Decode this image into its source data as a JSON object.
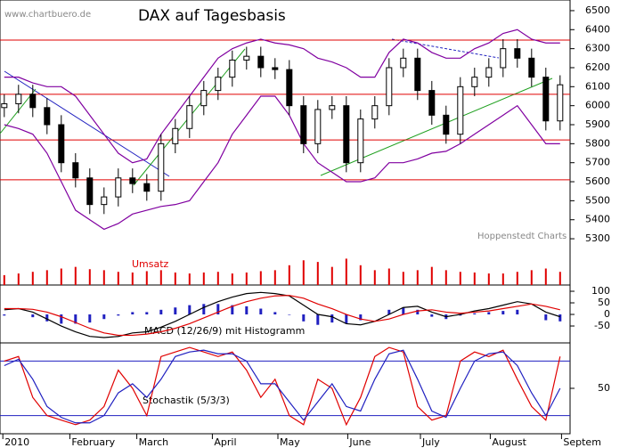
{
  "chart_data": [
    {
      "type": "candlestick",
      "title": "DAX auf Tagesbasis",
      "source": "www.chartbuero.de",
      "credit": "Hoppenstedt Charts",
      "open": [
        5990,
        6010,
        6060,
        5990,
        5900,
        5700,
        5620,
        5480,
        5520,
        5620,
        5590,
        5550,
        5800,
        5880,
        6000,
        6080,
        6150,
        6240,
        6260,
        6200,
        6190,
        6000,
        5800,
        5980,
        6000,
        5700,
        5930,
        6000,
        6200,
        6250,
        6080,
        5950,
        5850,
        6100,
        6150,
        6200,
        6300,
        6250,
        6150,
        5920
      ],
      "high": [
        6060,
        6110,
        6110,
        6040,
        5950,
        5750,
        5670,
        5570,
        5670,
        5670,
        5640,
        5850,
        5930,
        6050,
        6130,
        6200,
        6290,
        6310,
        6310,
        6250,
        6240,
        6050,
        6030,
        6050,
        6050,
        5980,
        6050,
        6250,
        6300,
        6300,
        6130,
        6000,
        6150,
        6200,
        6250,
        6350,
        6350,
        6300,
        6200,
        6160
      ],
      "low": [
        5940,
        5960,
        5940,
        5850,
        5650,
        5570,
        5430,
        5430,
        5470,
        5540,
        5500,
        5500,
        5750,
        5830,
        5950,
        6030,
        6100,
        6190,
        6150,
        6140,
        5950,
        5750,
        5750,
        5930,
        5650,
        5650,
        5880,
        5950,
        6150,
        6030,
        5900,
        5800,
        5800,
        6050,
        6100,
        6150,
        6200,
        6100,
        5870,
        5870
      ],
      "close": [
        6010,
        6060,
        5990,
        5900,
        5700,
        5620,
        5480,
        5520,
        5620,
        5590,
        5550,
        5800,
        5880,
        6000,
        6080,
        6150,
        6240,
        6260,
        6200,
        6190,
        6000,
        5800,
        5980,
        6000,
        5700,
        5930,
        6000,
        6200,
        6250,
        6080,
        5950,
        5850,
        6100,
        6150,
        6200,
        6300,
        6250,
        6150,
        5920,
        6110
      ],
      "bands": [
        {
          "color": "#8000a0",
          "values": [
            6150,
            6150,
            6120,
            6100,
            6100,
            6050,
            5950,
            5850,
            5750,
            5700,
            5720,
            5850,
            5950,
            6050,
            6150,
            6250,
            6300,
            6330,
            6350,
            6330,
            6320,
            6300,
            6250,
            6230,
            6200,
            6150,
            6150,
            6280,
            6350,
            6330,
            6280,
            6250,
            6250,
            6300,
            6330,
            6380,
            6400,
            6350,
            6330,
            6330
          ]
        },
        {
          "color": "#8000a0",
          "values": [
            5900,
            5880,
            5850,
            5750,
            5600,
            5450,
            5400,
            5350,
            5380,
            5430,
            5450,
            5470,
            5480,
            5500,
            5600,
            5700,
            5850,
            5950,
            6050,
            6050,
            5950,
            5800,
            5700,
            5650,
            5600,
            5600,
            5620,
            5700,
            5700,
            5720,
            5750,
            5760,
            5800,
            5850,
            5900,
            5950,
            6000,
            5900,
            5800,
            5800
          ]
        }
      ],
      "levels": [
        6345,
        6060,
        5820,
        5610
      ],
      "level_color": "#e00000",
      "ylim": [
        5230,
        6556
      ],
      "yticks": [
        5300,
        5400,
        5500,
        5600,
        5700,
        5800,
        5900,
        6000,
        6100,
        6200,
        6300,
        6400,
        6500
      ]
    },
    {
      "type": "bar",
      "title": "Umsatz",
      "color": "#e00000",
      "values": [
        30,
        35,
        40,
        45,
        50,
        55,
        48,
        45,
        40,
        38,
        42,
        45,
        38,
        35,
        38,
        40,
        35,
        38,
        42,
        45,
        60,
        75,
        70,
        55,
        80,
        60,
        45,
        50,
        40,
        45,
        55,
        45,
        40,
        38,
        35,
        35,
        40,
        45,
        50,
        40
      ],
      "ylim": [
        0,
        100
      ]
    },
    {
      "type": "line",
      "title": "MACD (12/26/9) mit Histogramm",
      "ylim": [
        -123,
        127
      ],
      "yticks": [
        -50,
        0,
        50,
        100
      ],
      "histogram": {
        "color": "#2020c0",
        "values": [
          -5,
          0,
          -12,
          -30,
          -40,
          -40,
          -35,
          -20,
          -5,
          10,
          10,
          20,
          30,
          40,
          45,
          45,
          40,
          35,
          25,
          10,
          -2,
          -30,
          -45,
          -35,
          -40,
          -25,
          0,
          20,
          30,
          20,
          -10,
          -20,
          -5,
          5,
          10,
          15,
          20,
          0,
          -25,
          -30
        ]
      },
      "series": [
        {
          "color": "#000000",
          "values": [
            20,
            25,
            10,
            -20,
            -50,
            -75,
            -95,
            -100,
            -95,
            -80,
            -75,
            -55,
            -30,
            0,
            30,
            55,
            75,
            90,
            95,
            90,
            80,
            40,
            0,
            -10,
            -40,
            -45,
            -30,
            0,
            30,
            35,
            10,
            -10,
            0,
            15,
            25,
            40,
            55,
            45,
            10,
            -10
          ]
        },
        {
          "color": "#e00000",
          "values": [
            25,
            25,
            22,
            10,
            -10,
            -35,
            -60,
            -80,
            -90,
            -90,
            -85,
            -75,
            -60,
            -40,
            -15,
            10,
            35,
            55,
            70,
            80,
            82,
            70,
            45,
            25,
            0,
            -20,
            -30,
            -20,
            0,
            15,
            20,
            10,
            5,
            10,
            15,
            25,
            35,
            45,
            35,
            20
          ]
        }
      ]
    },
    {
      "type": "line",
      "title": "Stochastik (5/3/3)",
      "ylim": [
        0,
        100
      ],
      "yticks": [
        50
      ],
      "levels": [
        80,
        20
      ],
      "level_color": "#2020c0",
      "series": [
        {
          "color": "#e00000",
          "values": [
            80,
            85,
            40,
            20,
            15,
            10,
            15,
            30,
            70,
            50,
            20,
            85,
            90,
            95,
            90,
            85,
            90,
            70,
            40,
            60,
            20,
            10,
            60,
            50,
            10,
            40,
            85,
            95,
            90,
            30,
            15,
            20,
            80,
            90,
            85,
            92,
            60,
            30,
            15,
            85
          ]
        },
        {
          "color": "#2020c0",
          "values": [
            75,
            82,
            60,
            30,
            18,
            12,
            12,
            20,
            45,
            55,
            40,
            60,
            85,
            90,
            92,
            88,
            88,
            80,
            55,
            55,
            35,
            15,
            35,
            55,
            30,
            25,
            60,
            88,
            92,
            60,
            25,
            18,
            50,
            80,
            88,
            90,
            75,
            45,
            20,
            50
          ]
        }
      ],
      "xlim": [
        -0.3,
        39.7
      ],
      "xticks": [
        {
          "value": -0.1,
          "label": "2010"
        },
        {
          "value": 4.6,
          "label": "February"
        },
        {
          "value": 9.3,
          "label": "March"
        },
        {
          "value": 14.6,
          "label": "April"
        },
        {
          "value": 19.2,
          "label": "May"
        },
        {
          "value": 24.1,
          "label": "June"
        },
        {
          "value": 29.2,
          "label": "July"
        },
        {
          "value": 34.1,
          "label": "August"
        },
        {
          "value": 39.1,
          "label": "Septem"
        }
      ]
    }
  ]
}
